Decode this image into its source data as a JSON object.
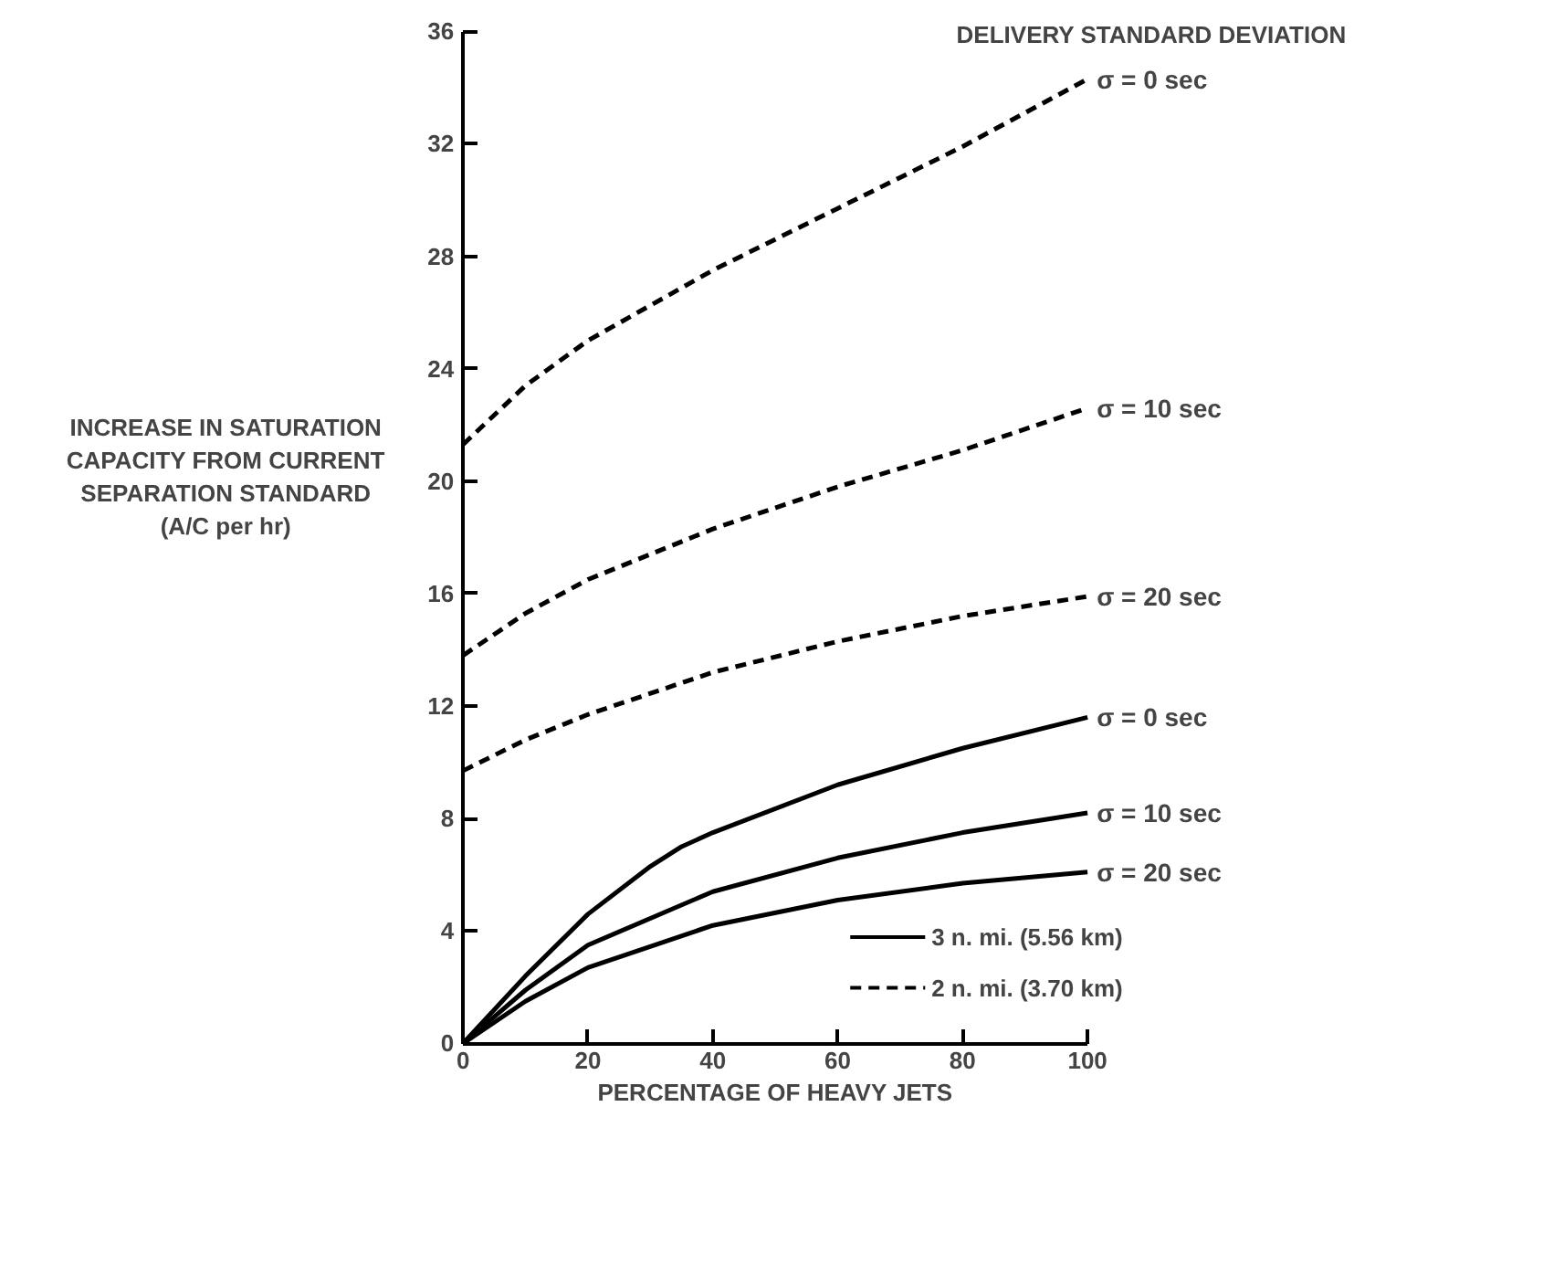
{
  "chart_data": {
    "type": "line",
    "xlabel": "PERCENTAGE OF HEAVY JETS",
    "ylabel": "INCREASE IN SATURATION\nCAPACITY FROM CURRENT\nSEPARATION STANDARD\n(A/C per hr)",
    "legend_title": "DELIVERY STANDARD DEVIATION",
    "xlim": [
      0,
      100
    ],
    "ylim": [
      0,
      36
    ],
    "xticks": [
      0,
      20,
      40,
      60,
      80,
      100
    ],
    "yticks": [
      0,
      4,
      8,
      12,
      16,
      20,
      24,
      28,
      32,
      36
    ],
    "grid": false,
    "marker": "none",
    "annotations": [
      "3 n. mi.  (5.56 km)",
      "2 n. mi.  (3.70 km)"
    ],
    "series": [
      {
        "name": "σ = 0 sec",
        "color": "#000000",
        "line_style": "dashed",
        "x": [
          0,
          10,
          20,
          40,
          60,
          80,
          100
        ],
        "values": [
          21.3,
          23.4,
          25.0,
          27.5,
          29.7,
          31.9,
          34.3
        ]
      },
      {
        "name": "σ = 10 sec",
        "color": "#000000",
        "line_style": "dashed",
        "x": [
          0,
          10,
          20,
          40,
          60,
          80,
          100
        ],
        "values": [
          13.8,
          15.3,
          16.5,
          18.3,
          19.8,
          21.1,
          22.6
        ]
      },
      {
        "name": "σ = 20 sec",
        "color": "#000000",
        "line_style": "dashed",
        "x": [
          0,
          10,
          20,
          40,
          60,
          80,
          100
        ],
        "values": [
          9.7,
          10.8,
          11.7,
          13.2,
          14.3,
          15.2,
          15.9
        ]
      },
      {
        "name": "σ = 0 sec",
        "color": "#000000",
        "line_style": "solid",
        "x": [
          0,
          10,
          20,
          30,
          35,
          40,
          60,
          80,
          100
        ],
        "values": [
          0,
          2.4,
          4.6,
          6.3,
          7.0,
          7.5,
          9.2,
          10.5,
          11.6
        ]
      },
      {
        "name": "σ = 10 sec",
        "color": "#000000",
        "line_style": "solid",
        "x": [
          0,
          10,
          20,
          40,
          60,
          80,
          100
        ],
        "values": [
          0,
          1.9,
          3.5,
          5.4,
          6.6,
          7.5,
          8.2
        ]
      },
      {
        "name": "σ = 20 sec",
        "color": "#000000",
        "line_style": "solid",
        "x": [
          0,
          10,
          20,
          40,
          60,
          80,
          100
        ],
        "values": [
          0,
          1.5,
          2.7,
          4.2,
          5.1,
          5.7,
          6.1
        ]
      }
    ]
  }
}
